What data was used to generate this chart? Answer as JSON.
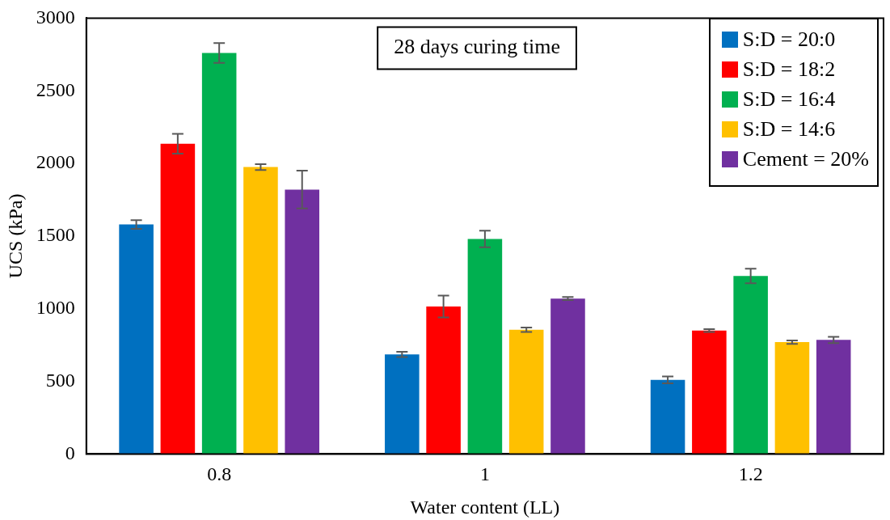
{
  "chart_data": {
    "type": "bar",
    "xlabel": "Water content (LL)",
    "ylabel": "UCS (kPa)",
    "annotations": [
      "28 days curing time"
    ],
    "categories": [
      "0.8",
      "1",
      "1.2"
    ],
    "series": [
      {
        "name": "S:D = 20:0",
        "color": "#0070c0",
        "values": [
          1580,
          685,
          510
        ],
        "errors": [
          30,
          18,
          24
        ]
      },
      {
        "name": "S:D = 18:2",
        "color": "#ff0000",
        "values": [
          2135,
          1015,
          850
        ],
        "errors": [
          68,
          75,
          10
        ]
      },
      {
        "name": "S:D = 16:4",
        "color": "#00b050",
        "values": [
          2760,
          1480,
          1225
        ],
        "errors": [
          68,
          57,
          50
        ]
      },
      {
        "name": "S:D = 14:6",
        "color": "#ffc000",
        "values": [
          1975,
          855,
          770
        ],
        "errors": [
          20,
          15,
          12
        ]
      },
      {
        "name": "Cement = 20%",
        "color": "#7030a0",
        "values": [
          1820,
          1070,
          785
        ],
        "errors": [
          130,
          10,
          22
        ]
      }
    ],
    "ylim": [
      0,
      3000
    ],
    "yticks": [
      0,
      500,
      1000,
      1500,
      2000,
      2500,
      3000
    ],
    "grid": false,
    "legend": "top right"
  }
}
